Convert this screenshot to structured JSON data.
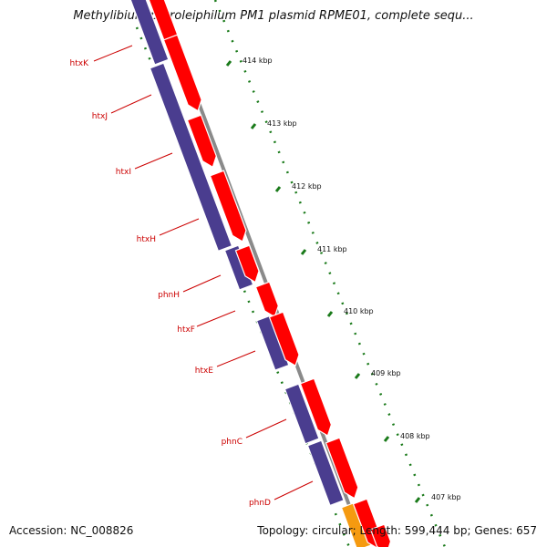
{
  "title": "Methylibium petroleiphilum PM1 plasmid RPME01, complete sequ...",
  "footer": {
    "accession": "Accession: NC_008826",
    "summary": "Topology: circular; Length: 599,444 bp; Genes: 657"
  },
  "ticks": [
    {
      "label": "414 kbp"
    },
    {
      "label": "413 kbp"
    },
    {
      "label": "412 kbp"
    },
    {
      "label": "411 kbp"
    },
    {
      "label": "410 kbp"
    },
    {
      "label": "409 kbp"
    },
    {
      "label": "408 kbp"
    },
    {
      "label": "407 kbp"
    }
  ],
  "gene_labels": [
    {
      "name": "htxK"
    },
    {
      "name": "htxJ"
    },
    {
      "name": "htxI"
    },
    {
      "name": "htxH"
    },
    {
      "name": "phnH"
    },
    {
      "name": "htxF"
    },
    {
      "name": "htxE"
    },
    {
      "name": "phnC"
    },
    {
      "name": "phnD"
    }
  ],
  "colors": {
    "cds_forward": "#ff0000",
    "cds_reverse": "#4a3d8f",
    "orf": "#f59a10",
    "backbone": "#8a8a8a",
    "tick": "#1a7a1a",
    "label": "#cc0000"
  }
}
